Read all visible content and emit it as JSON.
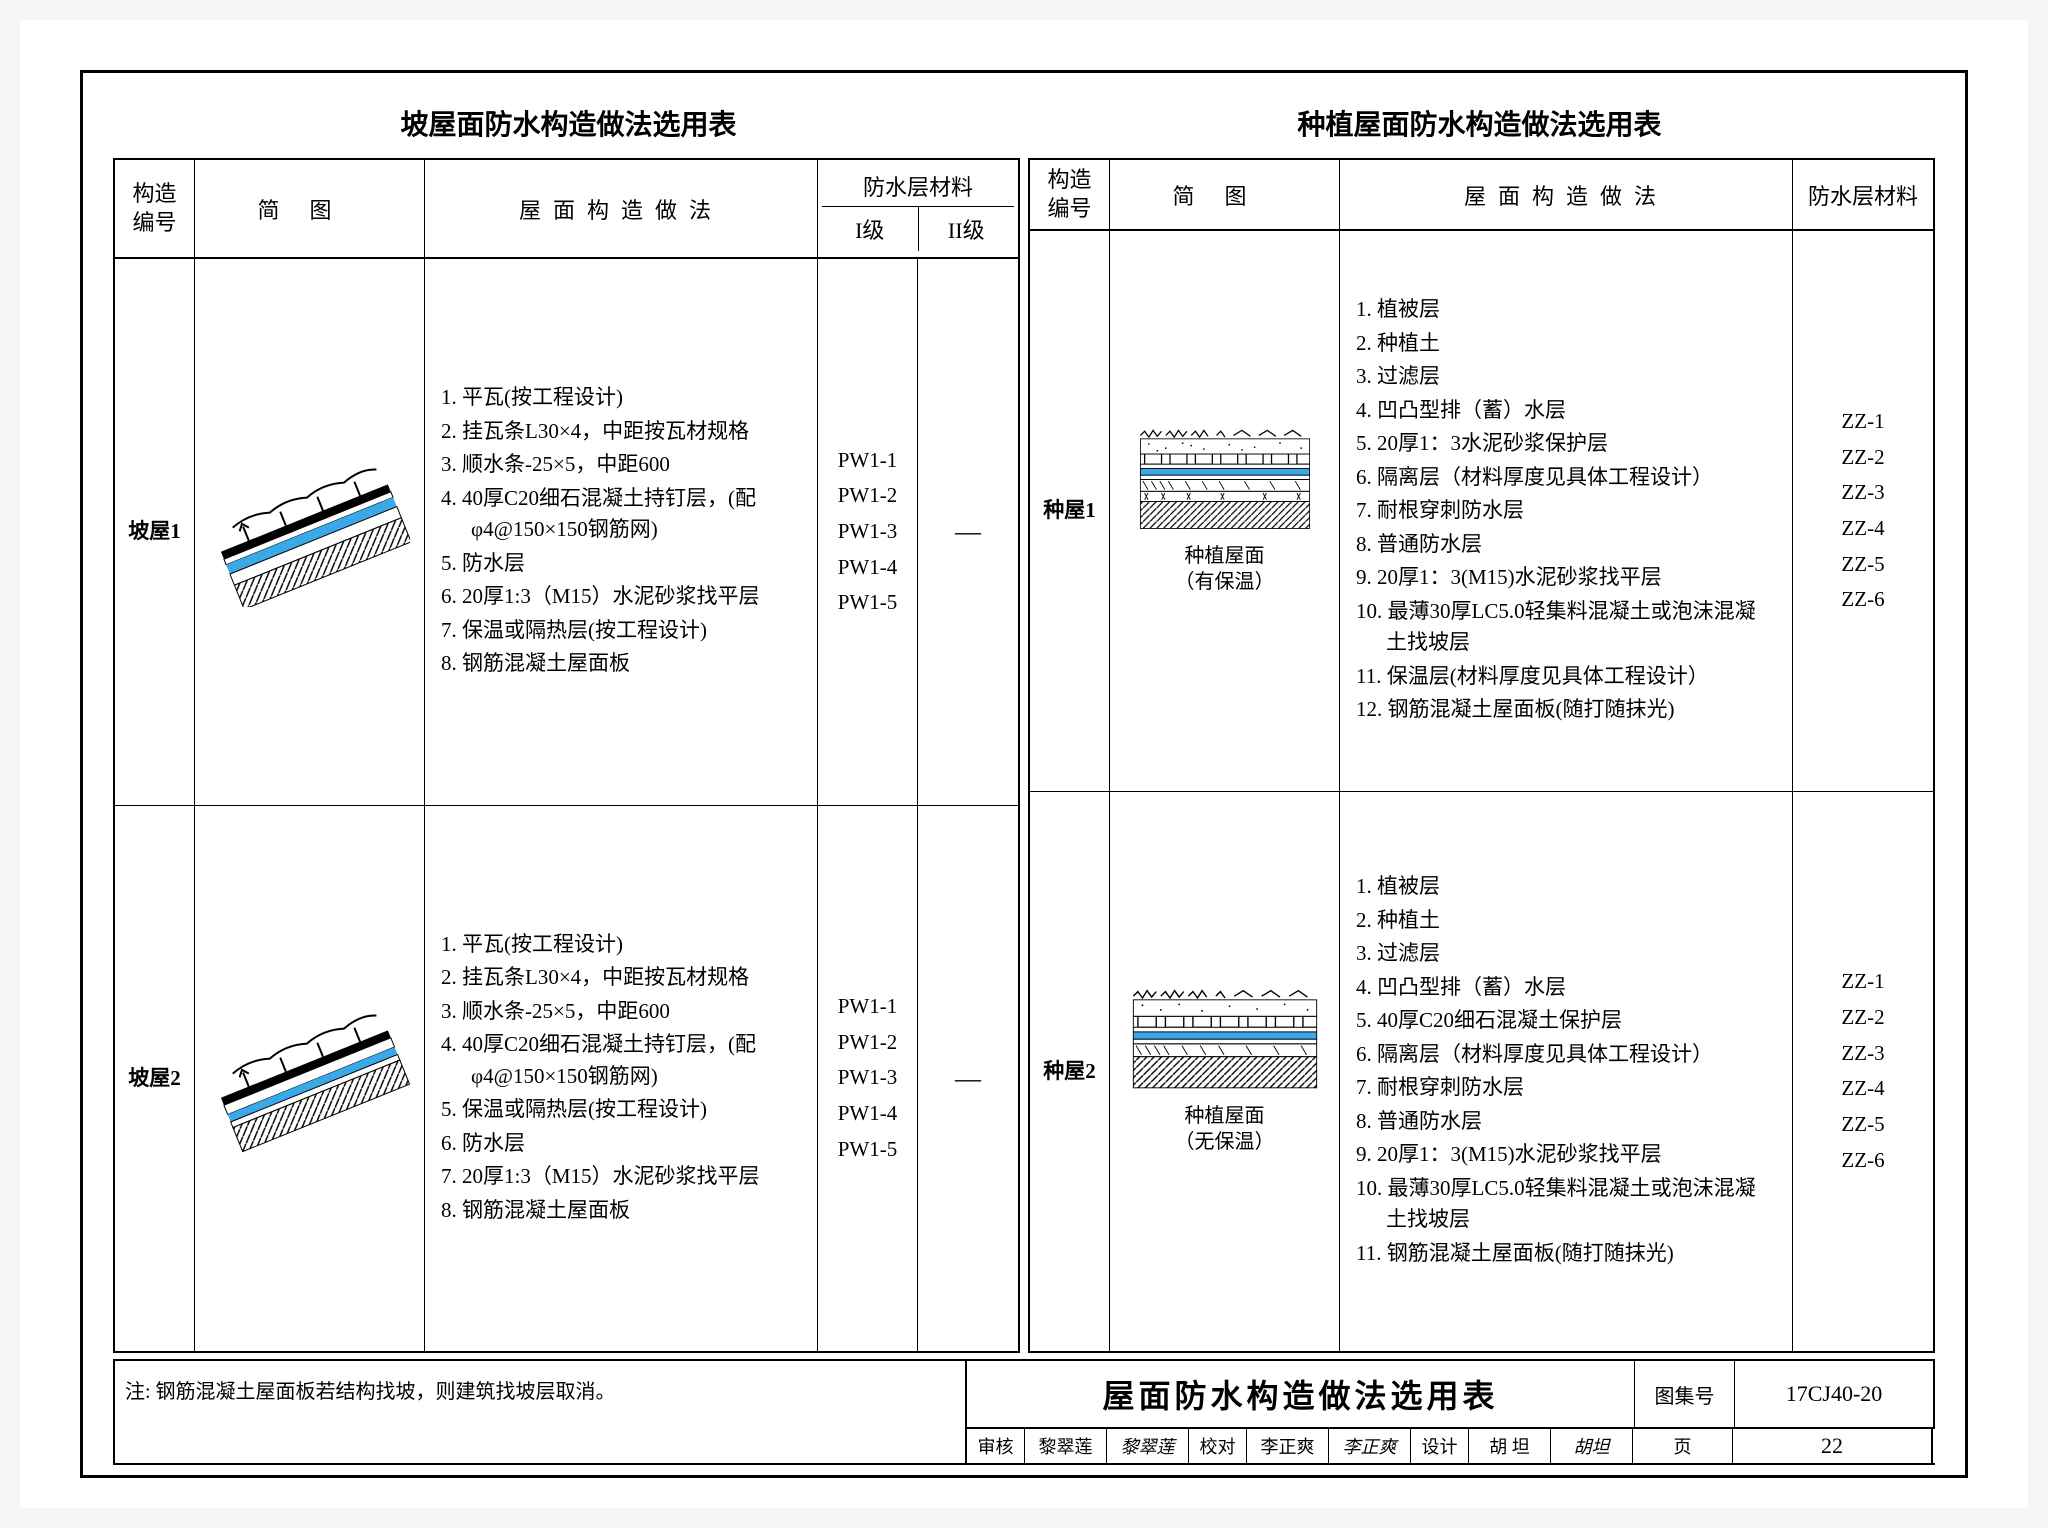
{
  "titles": {
    "left": "坡屋面防水构造做法选用表",
    "right": "种植屋面防水构造做法选用表"
  },
  "leftTable": {
    "headers": {
      "id_line1": "构造",
      "id_line2": "编号",
      "diagram": "简图",
      "method": "屋面构造做法",
      "material_header": "防水层材料",
      "material_sub1": "I级",
      "material_sub2": "II级"
    },
    "rows": [
      {
        "id": "坡屋1",
        "methods": [
          "1. 平瓦(按工程设计)",
          "2. 挂瓦条L30×4，中距按瓦材规格",
          "3. 顺水条-25×5，中距600",
          "4. 40厚C20细石混凝土持钉层，(配φ4@150×150钢筋网)",
          "5. 防水层",
          "6. 20厚1:3（M15）水泥砂浆找平层",
          "7. 保温或隔热层(按工程设计)",
          "8. 钢筋混凝土屋面板"
        ],
        "material_1": "PW1-1\nPW1-2\nPW1-3\nPW1-4\nPW1-5",
        "material_2": "—"
      },
      {
        "id": "坡屋2",
        "methods": [
          "1. 平瓦(按工程设计)",
          "2. 挂瓦条L30×4，中距按瓦材规格",
          "3. 顺水条-25×5，中距600",
          "4. 40厚C20细石混凝土持钉层，(配φ4@150×150钢筋网)",
          "5. 保温或隔热层(按工程设计)",
          "6. 防水层",
          "7. 20厚1:3（M15）水泥砂浆找平层",
          "8. 钢筋混凝土屋面板"
        ],
        "material_1": "PW1-1\nPW1-2\nPW1-3\nPW1-4\nPW1-5",
        "material_2": "—"
      }
    ]
  },
  "rightTable": {
    "headers": {
      "id_line1": "构造",
      "id_line2": "编号",
      "diagram": "简图",
      "method": "屋面构造做法",
      "material": "防水层材料"
    },
    "rows": [
      {
        "id": "种屋1",
        "diagram_caption_line1": "种植屋面",
        "diagram_caption_line2": "（有保温）",
        "methods": [
          "1. 植被层",
          "2. 种植土",
          "3. 过滤层",
          "4. 凹凸型排（蓄）水层",
          "5. 20厚1：3水泥砂浆保护层",
          "6. 隔离层（材料厚度见具体工程设计）",
          "7. 耐根穿刺防水层",
          "8. 普通防水层",
          "9. 20厚1：3(M15)水泥砂浆找平层",
          "10. 最薄30厚LC5.0轻集料混凝土或泡沫混凝土找坡层",
          "11. 保温层(材料厚度见具体工程设计）",
          "12. 钢筋混凝土屋面板(随打随抹光)"
        ],
        "material": "ZZ-1\nZZ-2\nZZ-3\nZZ-4\nZZ-5\nZZ-6"
      },
      {
        "id": "种屋2",
        "diagram_caption_line1": "种植屋面",
        "diagram_caption_line2": "（无保温）",
        "methods": [
          "1. 植被层",
          "2. 种植土",
          "3. 过滤层",
          "4. 凹凸型排（蓄）水层",
          "5. 40厚C20细石混凝土保护层",
          "6. 隔离层（材料厚度见具体工程设计）",
          "7. 耐根穿刺防水层",
          "8. 普通防水层",
          "9. 20厚1：3(M15)水泥砂浆找平层",
          "10. 最薄30厚LC5.0轻集料混凝土或泡沫混凝土找坡层",
          "11. 钢筋混凝土屋面板(随打随抹光)"
        ],
        "material": "ZZ-1\nZZ-2\nZZ-3\nZZ-4\nZZ-5\nZZ-6"
      }
    ]
  },
  "footer": {
    "note": "注: 钢筋混凝土屋面板若结构找坡，则建筑找坡层取消。",
    "main_title": "屋面防水构造做法选用表",
    "atlas_label": "图集号",
    "atlas_num": "17CJ40-20",
    "signoff": {
      "audit_label": "审核",
      "audit_name": "黎翠莲",
      "check_label": "校对",
      "check_name": "李正爽",
      "design_label": "设计",
      "design_name": "胡 坦",
      "page_label": "页",
      "page_num": "22"
    }
  },
  "styling": {
    "border_color": "#000000",
    "background": "#ffffff",
    "waterproof_color": "#3ba8e8",
    "hatch_color": "#000000"
  }
}
